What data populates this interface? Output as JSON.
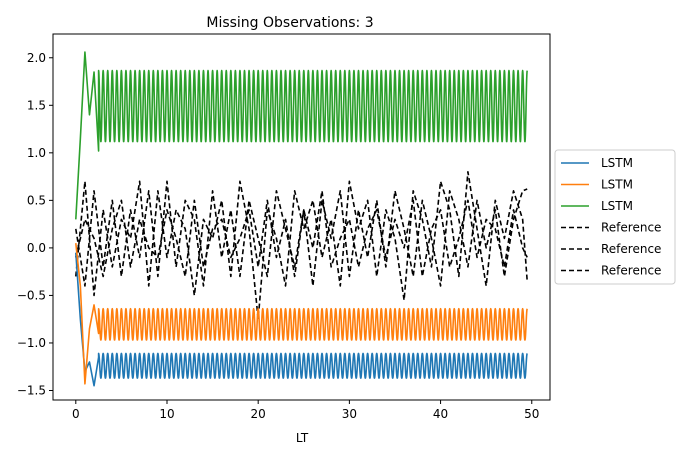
{
  "chart_data": {
    "type": "line",
    "title": "Missing Observations: 3",
    "xlabel": "LT",
    "ylabel": "",
    "xlim": [
      -2.5,
      52.0
    ],
    "ylim": [
      -1.6,
      2.25
    ],
    "xticks": [
      0,
      10,
      20,
      30,
      40,
      50
    ],
    "yticks": [
      -1.5,
      -1.0,
      -0.5,
      0.0,
      0.5,
      1.0,
      1.5,
      2.0
    ],
    "xtick_labels": [
      "0",
      "10",
      "20",
      "30",
      "40",
      "50"
    ],
    "ytick_labels": [
      "−1.5",
      "−1.0",
      "−0.5",
      "0.0",
      "0.5",
      "1.0",
      "1.5",
      "2.0"
    ],
    "grid": false,
    "legend_position": "outside-right",
    "series": [
      {
        "name": "LSTM",
        "color": "#1f77b4",
        "style": "solid",
        "x": [
          0,
          0.5,
          1.0,
          1.5,
          2.0,
          2.5,
          3,
          5,
          10,
          15,
          20,
          25,
          30,
          35,
          40,
          45,
          49.5
        ],
        "y": [
          -0.05,
          -0.75,
          -1.3,
          -1.2,
          -1.45,
          -1.15,
          -1.25,
          -1.25,
          -1.25,
          -1.25,
          -1.25,
          -1.25,
          -1.25,
          -1.25,
          -1.25,
          -1.25,
          -1.28
        ],
        "oscillation": {
          "center": -1.24,
          "amplitude": 0.13,
          "period": 0.5,
          "start_x": 2.5
        }
      },
      {
        "name": "LSTM",
        "color": "#ff7f0e",
        "style": "solid",
        "x": [
          0,
          0.5,
          1.0,
          1.5,
          2.0,
          2.5,
          3,
          5,
          10,
          15,
          20,
          25,
          30,
          35,
          40,
          45,
          49.5
        ],
        "y": [
          0.05,
          -0.4,
          -1.43,
          -0.85,
          -0.6,
          -0.9,
          -0.8,
          -0.8,
          -0.8,
          -0.8,
          -0.8,
          -0.8,
          -0.8,
          -0.8,
          -0.8,
          -0.8,
          -0.72
        ],
        "oscillation": {
          "center": -0.805,
          "amplitude": 0.165,
          "period": 0.5,
          "start_x": 2.5
        }
      },
      {
        "name": "LSTM",
        "color": "#2ca02c",
        "style": "solid",
        "x": [
          0,
          0.5,
          1.0,
          1.5,
          2.0,
          2.5,
          3,
          5,
          10,
          15,
          20,
          25,
          30,
          35,
          40,
          45,
          49.5
        ],
        "y": [
          0.3,
          1.15,
          2.06,
          1.4,
          1.85,
          1.02,
          1.5,
          1.5,
          1.5,
          1.5,
          1.5,
          1.5,
          1.5,
          1.5,
          1.5,
          1.5,
          1.85
        ],
        "oscillation": {
          "center": 1.49,
          "amplitude": 0.375,
          "period": 0.5,
          "start_x": 2.5
        }
      },
      {
        "name": "Reference",
        "color": "#000000",
        "style": "dashed",
        "x": [
          0,
          1,
          2,
          3,
          4,
          5,
          6,
          7,
          8,
          9,
          10,
          11,
          12,
          13,
          14,
          15,
          16,
          17,
          18,
          19,
          20,
          21,
          22,
          23,
          24,
          25,
          26,
          27,
          28,
          29,
          30,
          31,
          32,
          33,
          34,
          35,
          36,
          37,
          38,
          39,
          40,
          41,
          42,
          43,
          44,
          45,
          46,
          47,
          48,
          49,
          49.5
        ],
        "y": [
          -0.3,
          0.7,
          -0.5,
          0.4,
          -0.2,
          0.3,
          0.1,
          0.7,
          -0.4,
          0.6,
          -0.1,
          0.4,
          0.2,
          -0.5,
          0.3,
          0.1,
          0.5,
          -0.3,
          0.7,
          0.2,
          -0.75,
          0.4,
          0.1,
          -0.4,
          0.6,
          0.2,
          0.5,
          -0.1,
          0.3,
          -0.4,
          0.7,
          0.2,
          0.5,
          -0.3,
          0.4,
          0.1,
          -0.55,
          0.6,
          0.3,
          -0.2,
          0.7,
          0.4,
          -0.3,
          0.8,
          0.2,
          -0.4,
          0.5,
          0.1,
          0.6,
          0.3,
          -0.35
        ]
      },
      {
        "name": "Reference",
        "color": "#000000",
        "style": "dashed",
        "x": [
          0,
          1,
          2,
          3,
          4,
          5,
          6,
          7,
          8,
          9,
          10,
          11,
          12,
          13,
          14,
          15,
          16,
          17,
          18,
          19,
          20,
          21,
          22,
          23,
          24,
          25,
          26,
          27,
          28,
          29,
          30,
          31,
          32,
          33,
          34,
          35,
          36,
          37,
          38,
          39,
          40,
          41,
          42,
          43,
          44,
          45,
          46,
          47,
          48,
          49,
          49.5
        ],
        "y": [
          0.2,
          -0.4,
          0.6,
          -0.2,
          0.5,
          -0.3,
          0.4,
          -0.1,
          0.6,
          -0.3,
          0.7,
          -0.2,
          0.5,
          0.3,
          -0.4,
          0.6,
          -0.1,
          0.4,
          -0.3,
          0.5,
          0.1,
          -0.3,
          0.6,
          0.2,
          -0.2,
          0.4,
          -0.4,
          0.5,
          0.1,
          0.6,
          -0.3,
          0.4,
          -0.1,
          0.5,
          -0.2,
          0.6,
          0.2,
          -0.3,
          0.5,
          0.1,
          -0.4,
          0.6,
          0.3,
          -0.2,
          0.5,
          0.0,
          0.4,
          -0.3,
          0.3,
          0.6,
          0.62
        ]
      },
      {
        "name": "Reference",
        "color": "#000000",
        "style": "dashed",
        "x": [
          0,
          1,
          2,
          3,
          4,
          5,
          6,
          7,
          8,
          9,
          10,
          11,
          12,
          13,
          14,
          15,
          16,
          17,
          18,
          19,
          20,
          21,
          22,
          23,
          24,
          25,
          26,
          27,
          28,
          29,
          30,
          31,
          32,
          33,
          34,
          35,
          36,
          37,
          38,
          39,
          40,
          41,
          42,
          43,
          44,
          45,
          46,
          47,
          48,
          49,
          49.5
        ],
        "y": [
          -0.1,
          0.3,
          0.1,
          -0.3,
          0.2,
          0.5,
          -0.2,
          0.3,
          0.0,
          -0.1,
          0.4,
          0.1,
          -0.3,
          0.5,
          -0.2,
          0.2,
          0.3,
          -0.1,
          0.1,
          0.4,
          -0.2,
          0.5,
          -0.1,
          0.3,
          -0.3,
          0.4,
          0.0,
          0.6,
          -0.2,
          0.1,
          0.3,
          -0.2,
          0.2,
          0.4,
          -0.1,
          0.3,
          0.0,
          0.5,
          -0.3,
          0.2,
          0.4,
          -0.2,
          0.1,
          0.5,
          -0.1,
          0.3,
          0.2,
          -0.2,
          0.4,
          0.0,
          -0.1
        ]
      }
    ]
  }
}
